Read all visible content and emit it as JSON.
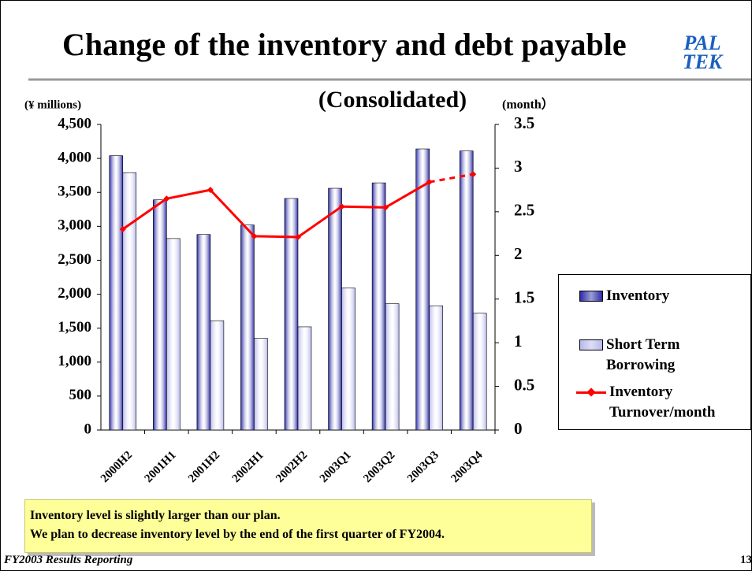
{
  "chart_data": {
    "type": "bar_line",
    "title": "Change of the inventory and debt payable",
    "subtitle": "(Consolidated)",
    "ylabel": "(¥ millions)",
    "y2label": "(month）",
    "categories": [
      "2000H2",
      "2001H1",
      "2001H2",
      "2002H1",
      "2002H2",
      "2003Q1",
      "2003Q2",
      "2003Q3",
      "2003Q4"
    ],
    "series": [
      {
        "name": "Inventory",
        "type": "bar",
        "color": "#2b2ba8",
        "values": [
          4040,
          3390,
          2880,
          3020,
          3410,
          3560,
          3640,
          4140,
          4110
        ]
      },
      {
        "name": "Short Term Borrowing",
        "type": "bar",
        "color": "#b8b8ec",
        "values": [
          3790,
          2820,
          1610,
          1350,
          1520,
          2090,
          1860,
          1830,
          1720
        ]
      },
      {
        "name": "Inventory Turnover/month",
        "type": "line",
        "axis": "y2",
        "color": "#ff0000",
        "dash_last": true,
        "values": [
          2.3,
          2.65,
          2.75,
          2.22,
          2.21,
          2.56,
          2.55,
          2.84,
          2.93
        ]
      }
    ],
    "ylim": [
      0,
      4500
    ],
    "yticks": [
      0,
      500,
      {
        "value": 1000,
        "label": "1,000"
      },
      {
        "value": 1500,
        "label": "1,500"
      },
      {
        "value": 2000,
        "label": "2,000"
      },
      {
        "value": 2500,
        "label": "2,500"
      },
      {
        "value": 3000,
        "label": "3,000"
      },
      {
        "value": 3500,
        "label": "3,500"
      },
      {
        "value": 4000,
        "label": "4,000"
      },
      {
        "value": 4500,
        "label": "4,500"
      }
    ],
    "y2lim": [
      0,
      3.5
    ],
    "y2ticks": [
      0,
      0.5,
      1,
      1.5,
      2,
      2.5,
      3,
      3.5
    ],
    "legend": "right"
  },
  "logo": [
    "PAL",
    "TEK"
  ],
  "note": [
    "Inventory level is slightly larger than our plan.",
    "We plan to decrease inventory level by the end of the first quarter of FY2004."
  ],
  "footer": "FY2003 Results Reporting",
  "page_number": "13"
}
